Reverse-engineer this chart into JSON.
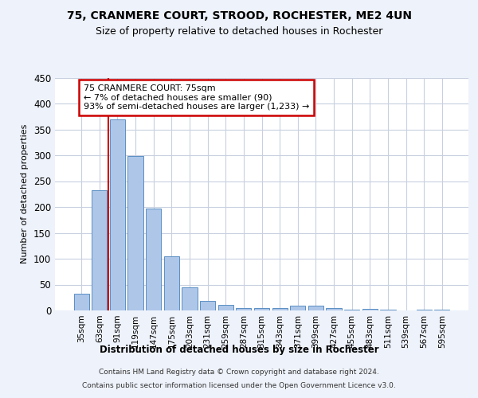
{
  "title1": "75, CRANMERE COURT, STROOD, ROCHESTER, ME2 4UN",
  "title2": "Size of property relative to detached houses in Rochester",
  "xlabel": "Distribution of detached houses by size in Rochester",
  "ylabel": "Number of detached properties",
  "categories": [
    "35sqm",
    "63sqm",
    "91sqm",
    "119sqm",
    "147sqm",
    "175sqm",
    "203sqm",
    "231sqm",
    "259sqm",
    "287sqm",
    "315sqm",
    "343sqm",
    "371sqm",
    "399sqm",
    "427sqm",
    "455sqm",
    "483sqm",
    "511sqm",
    "539sqm",
    "567sqm",
    "595sqm"
  ],
  "values": [
    33,
    233,
    370,
    298,
    197,
    104,
    45,
    19,
    11,
    4,
    5,
    4,
    10,
    10,
    5,
    2,
    3,
    2,
    0,
    2,
    2
  ],
  "bar_color": "#aec6e8",
  "bar_edge_color": "#5a8fc4",
  "vline_color": "#cc0000",
  "annotation_line1": "75 CRANMERE COURT: 75sqm",
  "annotation_line2": "← 7% of detached houses are smaller (90)",
  "annotation_line3": "93% of semi-detached houses are larger (1,233) →",
  "annotation_box_color": "#ffffff",
  "annotation_box_edge_color": "#cc0000",
  "ylim": [
    0,
    450
  ],
  "yticks": [
    0,
    50,
    100,
    150,
    200,
    250,
    300,
    350,
    400,
    450
  ],
  "footer_line1": "Contains HM Land Registry data © Crown copyright and database right 2024.",
  "footer_line2": "Contains public sector information licensed under the Open Government Licence v3.0.",
  "bg_color": "#eef2fa",
  "plot_bg_color": "#ffffff",
  "grid_color": "#c8d0e0"
}
